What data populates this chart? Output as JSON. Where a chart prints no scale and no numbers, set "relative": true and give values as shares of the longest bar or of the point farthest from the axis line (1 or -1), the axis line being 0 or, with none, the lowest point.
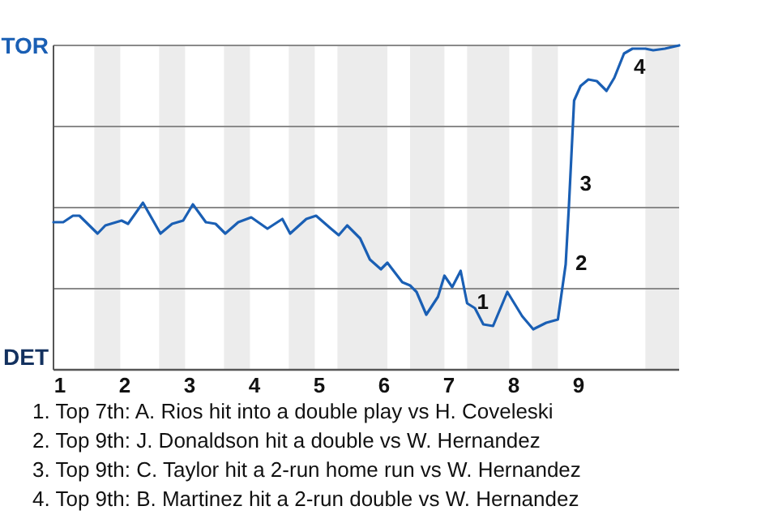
{
  "chart_data": {
    "type": "line",
    "relative": true,
    "x": [
      0.9,
      1.05,
      1.2,
      1.3,
      1.58,
      1.7,
      1.95,
      2.05,
      2.28,
      2.55,
      2.73,
      2.9,
      3.05,
      3.25,
      3.4,
      3.55,
      3.75,
      3.95,
      4.2,
      4.43,
      4.55,
      4.8,
      4.95,
      5.18,
      5.3,
      5.43,
      5.63,
      5.78,
      5.95,
      6.05,
      6.28,
      6.4,
      6.5,
      6.65,
      6.83,
      6.93,
      7.05,
      7.18,
      7.28,
      7.4,
      7.53,
      7.68,
      7.9,
      8.13,
      8.3,
      8.5,
      8.68,
      8.8,
      8.85,
      8.93,
      9.03,
      9.15,
      9.28,
      9.43,
      9.55,
      9.7,
      9.83,
      10.03,
      10.15,
      10.33,
      10.55
    ],
    "series": [
      {
        "color": "#1a5fb4",
        "values": [
          0.455,
          0.455,
          0.475,
          0.475,
          0.42,
          0.445,
          0.46,
          0.45,
          0.515,
          0.42,
          0.45,
          0.46,
          0.51,
          0.455,
          0.45,
          0.42,
          0.455,
          0.47,
          0.435,
          0.465,
          0.42,
          0.465,
          0.475,
          0.435,
          0.415,
          0.445,
          0.405,
          0.34,
          0.31,
          0.33,
          0.27,
          0.26,
          0.24,
          0.17,
          0.225,
          0.29,
          0.255,
          0.305,
          0.205,
          0.19,
          0.14,
          0.135,
          0.24,
          0.165,
          0.125,
          0.145,
          0.155,
          0.325,
          0.505,
          0.83,
          0.875,
          0.895,
          0.89,
          0.86,
          0.9,
          0.975,
          0.99,
          0.99,
          0.985,
          0.99,
          1
        ]
      }
    ],
    "xlim": [
      0.9,
      10.55
    ],
    "xticks": [
      1,
      2,
      3,
      4,
      5,
      6,
      7,
      8,
      9
    ],
    "grid": "y",
    "bands": [
      {
        "axis": "x",
        "from": 1.53,
        "to": 1.93,
        "color": "#ececec"
      },
      {
        "axis": "x",
        "from": 2.53,
        "to": 2.93,
        "color": "#ececec"
      },
      {
        "axis": "x",
        "from": 3.53,
        "to": 3.93,
        "color": "#ececec"
      },
      {
        "axis": "x",
        "from": 4.53,
        "to": 4.93,
        "color": "#ececec"
      },
      {
        "axis": "x",
        "from": 5.28,
        "to": 6.05,
        "color": "#ececec"
      },
      {
        "axis": "x",
        "from": 6.4,
        "to": 6.93,
        "color": "#ececec"
      },
      {
        "axis": "x",
        "from": 7.28,
        "to": 7.93,
        "color": "#ececec"
      },
      {
        "axis": "x",
        "from": 8.28,
        "to": 8.68,
        "color": "#ececec"
      },
      {
        "axis": "x",
        "from": 10.03,
        "to": 10.55,
        "color": "#ececec"
      }
    ],
    "annotations": [
      "TOR",
      "DET",
      {
        "text": "1",
        "x": 7.28,
        "y": 0.205
      },
      {
        "text": "2",
        "x": 8.8,
        "y": 0.325
      },
      {
        "text": "3",
        "x": 8.87,
        "y": 0.57
      },
      {
        "text": "4",
        "x": 9.7,
        "y": 0.975
      },
      "1. Top 7th: A. Rios hit into a double play vs H. Coveleski",
      "2. Top 9th: J. Donaldson hit a double vs W. Hernandez",
      "3. Top 9th: C. Taylor hit a 2-run home run vs W. Hernandez",
      "4. Top 9th: B. Martinez hit a 2-run double vs W. Hernandez"
    ]
  }
}
